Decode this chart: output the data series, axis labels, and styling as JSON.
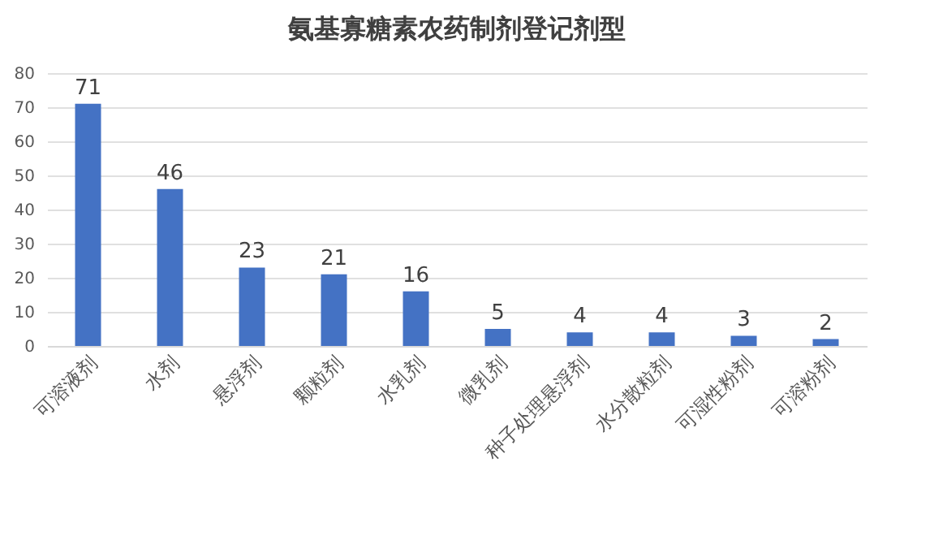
{
  "chart_data": {
    "type": "bar",
    "title": "氨基寡糖素农药制剂登记剂型",
    "categories": [
      "可溶液剂",
      "水剂",
      "悬浮剂",
      "颗粒剂",
      "水乳剂",
      "微乳剂",
      "种子处理悬浮剂",
      "水分散粒剂",
      "可湿性粉剂",
      "可溶粉剂"
    ],
    "values": [
      71,
      46,
      23,
      21,
      16,
      5,
      4,
      4,
      3,
      2
    ],
    "color": "#4472c4",
    "ylim": [
      0,
      80
    ],
    "yticks": [
      0,
      10,
      20,
      30,
      40,
      50,
      60,
      70,
      80
    ],
    "grid": "y",
    "data_labels": true
  }
}
